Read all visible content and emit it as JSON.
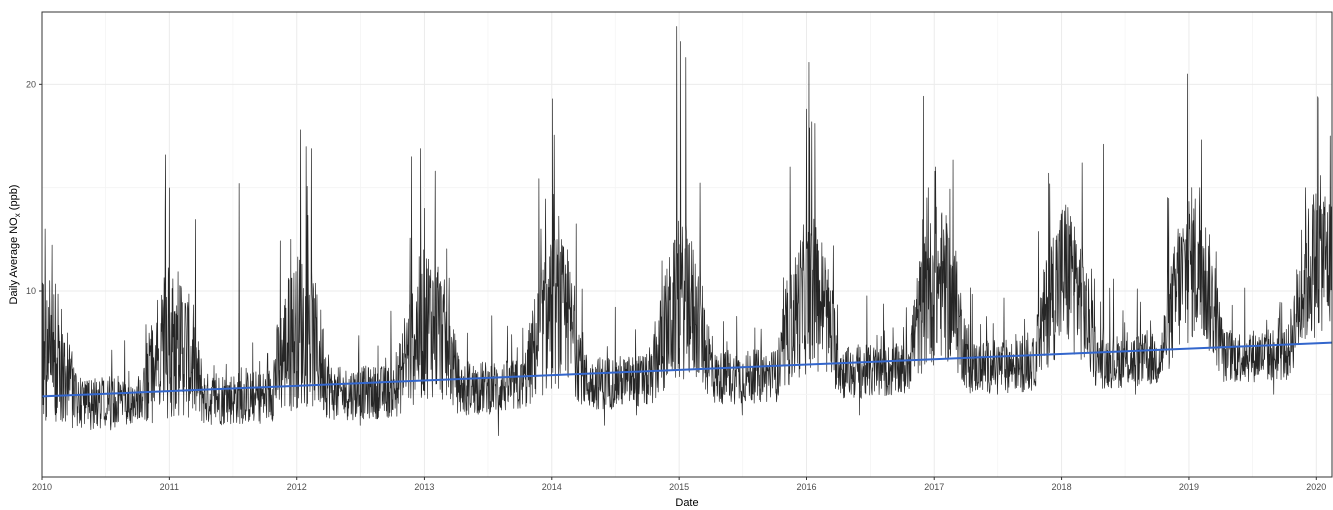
{
  "chart_data": {
    "type": "line",
    "title": "",
    "xlabel": "Date",
    "ylabel_prefix": "Daily Average NO",
    "ylabel_subscript": "x",
    "ylabel_suffix": " (ppb)",
    "x_ticks": [
      "2010",
      "2011",
      "2012",
      "2013",
      "2014",
      "2015",
      "2016",
      "2017",
      "2018",
      "2019",
      "2020"
    ],
    "y_ticks": [
      10,
      20
    ],
    "xlim": [
      "2010-01-01",
      "2020-02-15"
    ],
    "ylim": [
      1,
      23.5
    ],
    "grid": true,
    "colors": {
      "series": "#000000",
      "trend": "#3366cc",
      "grid": "#ebebeb",
      "panel_border": "#333333"
    },
    "series": [
      {
        "kind": "daily",
        "x_start": "2010-01-01",
        "x_end": "2020-02-15",
        "approx_points": [
          {
            "x": "2010-01-01",
            "y": 11.5
          },
          {
            "x": "2010-01-10",
            "y": 13
          },
          {
            "x": "2010-02-01",
            "y": 7
          },
          {
            "x": "2010-04-01",
            "y": 4
          },
          {
            "x": "2010-07-01",
            "y": 3.5
          },
          {
            "x": "2010-10-01",
            "y": 4.5
          },
          {
            "x": "2010-12-20",
            "y": 13.8
          },
          {
            "x": "2011-01-15",
            "y": 9
          },
          {
            "x": "2011-04-01",
            "y": 5
          },
          {
            "x": "2011-07-20",
            "y": 15.2
          },
          {
            "x": "2011-09-01",
            "y": 4
          },
          {
            "x": "2011-12-15",
            "y": 12.5
          },
          {
            "x": "2012-01-12",
            "y": 17.8
          },
          {
            "x": "2012-03-01",
            "y": 6
          },
          {
            "x": "2012-07-01",
            "y": 3.5
          },
          {
            "x": "2012-11-25",
            "y": 16.5
          },
          {
            "x": "2013-01-01",
            "y": 14
          },
          {
            "x": "2013-02-01",
            "y": 15.8
          },
          {
            "x": "2013-05-01",
            "y": 4
          },
          {
            "x": "2013-08-01",
            "y": 3
          },
          {
            "x": "2013-12-01",
            "y": 13
          },
          {
            "x": "2014-01-03",
            "y": 19.3
          },
          {
            "x": "2014-02-15",
            "y": 12
          },
          {
            "x": "2014-06-01",
            "y": 3.5
          },
          {
            "x": "2014-09-01",
            "y": 4
          },
          {
            "x": "2014-12-25",
            "y": 22.8
          },
          {
            "x": "2015-01-20",
            "y": 21.3
          },
          {
            "x": "2015-03-01",
            "y": 9
          },
          {
            "x": "2015-07-01",
            "y": 4
          },
          {
            "x": "2015-11-15",
            "y": 16
          },
          {
            "x": "2016-01-01",
            "y": 18.8
          },
          {
            "x": "2016-02-20",
            "y": 10
          },
          {
            "x": "2016-06-01",
            "y": 4
          },
          {
            "x": "2016-10-01",
            "y": 6
          },
          {
            "x": "2016-12-15",
            "y": 15
          },
          {
            "x": "2017-01-05",
            "y": 16
          },
          {
            "x": "2017-03-01",
            "y": 8
          },
          {
            "x": "2017-07-01",
            "y": 5
          },
          {
            "x": "2017-11-25",
            "y": 15.7
          },
          {
            "x": "2018-01-20",
            "y": 13
          },
          {
            "x": "2018-03-01",
            "y": 16.2
          },
          {
            "x": "2018-05-01",
            "y": 17.1
          },
          {
            "x": "2018-08-01",
            "y": 5
          },
          {
            "x": "2018-12-01",
            "y": 13
          },
          {
            "x": "2018-12-28",
            "y": 20.5
          },
          {
            "x": "2019-02-01",
            "y": 15
          },
          {
            "x": "2019-05-01",
            "y": 6
          },
          {
            "x": "2019-09-01",
            "y": 5
          },
          {
            "x": "2019-12-01",
            "y": 15
          },
          {
            "x": "2020-01-05",
            "y": 19.4
          },
          {
            "x": "2020-02-10",
            "y": 17.5
          }
        ]
      },
      {
        "kind": "linear_trend",
        "points": [
          {
            "x": "2010-01-01",
            "y": 4.9
          },
          {
            "x": "2020-02-15",
            "y": 7.5
          }
        ]
      }
    ]
  }
}
